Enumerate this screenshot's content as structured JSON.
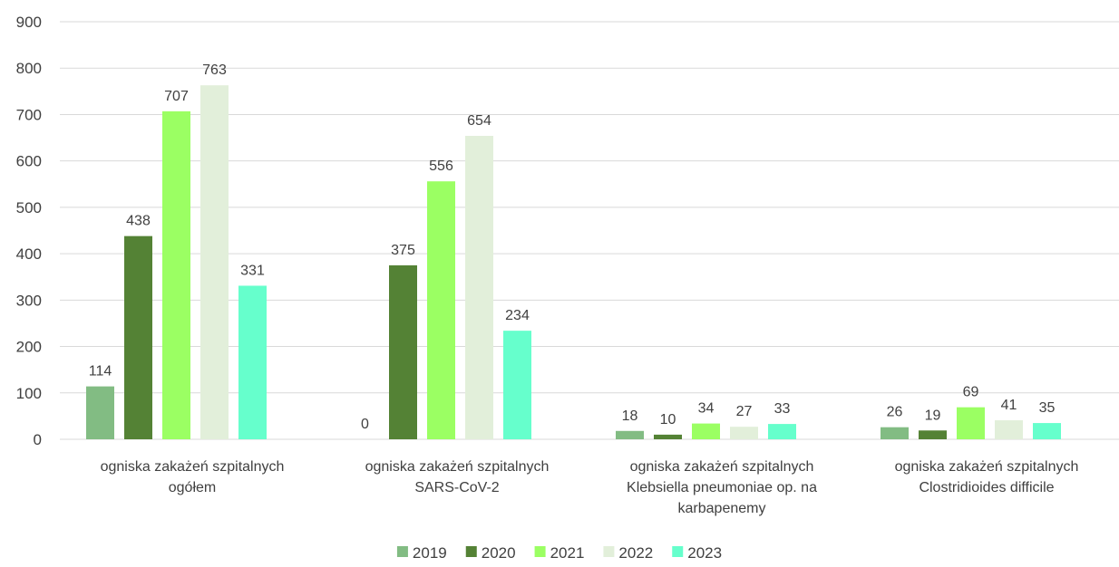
{
  "chart_data": {
    "type": "bar",
    "categories": [
      [
        "ogniska zakażeń szpitalnych",
        "ogółem"
      ],
      [
        "ogniska zakażeń szpitalnych",
        "SARS-CoV-2"
      ],
      [
        "ogniska zakażeń szpitalnych",
        "Klebsiella pneumoniae op. na",
        "karbapenemy"
      ],
      [
        "ogniska zakażeń szpitalnych",
        "Clostridioides difficile"
      ]
    ],
    "series": [
      {
        "name": "2019",
        "color": "#82bc83",
        "values": [
          114,
          0,
          18,
          26
        ]
      },
      {
        "name": "2020",
        "color": "#548235",
        "values": [
          438,
          375,
          10,
          19
        ]
      },
      {
        "name": "2021",
        "color": "#9bff63",
        "values": [
          707,
          556,
          34,
          69
        ]
      },
      {
        "name": "2022",
        "color": "#e2efda",
        "values": [
          763,
          654,
          27,
          41
        ]
      },
      {
        "name": "2023",
        "color": "#66ffcc",
        "values": [
          331,
          234,
          33,
          35
        ]
      }
    ],
    "ylim": [
      0,
      900
    ],
    "yticks": [
      0,
      100,
      200,
      300,
      400,
      500,
      600,
      700,
      800,
      900
    ],
    "grid": true,
    "legend": "bottom-center",
    "data_labels": true
  }
}
